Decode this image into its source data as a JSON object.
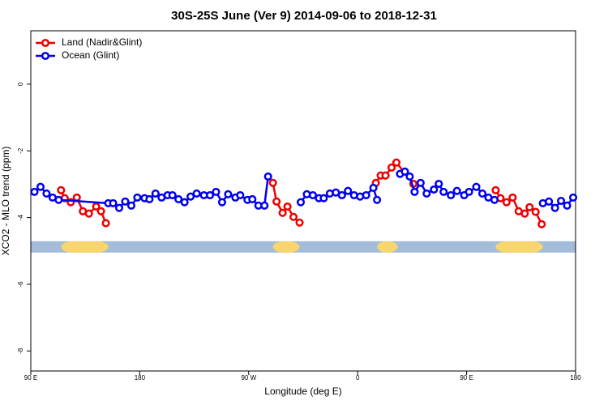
{
  "chart_data": {
    "type": "line",
    "title": "30S-25S June (Ver 9)   2014-09-06 to 2018-12-31",
    "x_label": "Longitude (deg E)",
    "y_label": "XCO2 - MLO trend (ppm)",
    "xlim": [
      90,
      540
    ],
    "xticks": [
      {
        "value": 90,
        "label": "90 E"
      },
      {
        "value": 180,
        "label": "180"
      },
      {
        "value": 270,
        "label": "90 W"
      },
      {
        "value": 360,
        "label": "0"
      },
      {
        "value": 450,
        "label": "90 E"
      },
      {
        "value": 540,
        "label": "180"
      }
    ],
    "ylim": [
      -8.6,
      1.6
    ],
    "yticks": [
      0,
      -2,
      -4,
      -6,
      -8
    ],
    "legend": "top-left",
    "mask_y": -4.88,
    "mask_color": "#a3bcd9",
    "land_color": "#f8d66d",
    "land": [
      [
        115,
        154
      ],
      [
        290,
        312
      ],
      [
        376,
        393
      ],
      [
        474,
        513
      ]
    ],
    "series": [
      {
        "name": "Land (Nadir&Glint)",
        "color": "#ee0000",
        "x": [
          115,
          118,
          123,
          128,
          133,
          138,
          144,
          148,
          152,
          null,
          290,
          293,
          298,
          302,
          307,
          312,
          null,
          375,
          379,
          383,
          388,
          392,
          406,
          null,
          474,
          478,
          483,
          488,
          493,
          498,
          502,
          507,
          512
        ],
        "values": [
          -3.18,
          -3.42,
          -3.54,
          -3.4,
          -3.81,
          -3.88,
          -3.67,
          -3.81,
          -4.17,
          null,
          -2.96,
          -3.52,
          -3.86,
          -3.67,
          -3.98,
          -4.15,
          null,
          -2.96,
          -2.74,
          -2.74,
          -2.5,
          -2.35,
          -2.99,
          null,
          -3.18,
          -3.42,
          -3.54,
          -3.4,
          -3.81,
          -3.88,
          -3.69,
          -3.83,
          -4.2
        ]
      },
      {
        "name": "Ocean (Glint)",
        "color": "#0000ee",
        "x": [
          93,
          98,
          103,
          108,
          113,
          154,
          158,
          163,
          168,
          173,
          178,
          184,
          188,
          193,
          198,
          203,
          207,
          212,
          217,
          222,
          227,
          233,
          238,
          243,
          248,
          253,
          259,
          263,
          269,
          273,
          278,
          283,
          286,
          null,
          313,
          318,
          323,
          328,
          332,
          337,
          342,
          347,
          352,
          357,
          362,
          367,
          373,
          376,
          null,
          395,
          399,
          403,
          407,
          412,
          417,
          423,
          427,
          431,
          437,
          442,
          448,
          452,
          458,
          463,
          468,
          473,
          null,
          513,
          518,
          523,
          528,
          533,
          538
        ],
        "values": [
          -3.23,
          -3.08,
          -3.28,
          -3.4,
          -3.47,
          -3.57,
          -3.57,
          -3.71,
          -3.52,
          -3.64,
          -3.4,
          -3.42,
          -3.45,
          -3.28,
          -3.4,
          -3.33,
          -3.33,
          -3.45,
          -3.54,
          -3.37,
          -3.28,
          -3.33,
          -3.33,
          -3.23,
          -3.54,
          -3.3,
          -3.4,
          -3.33,
          -3.47,
          -3.45,
          -3.64,
          -3.64,
          -2.77,
          null,
          -3.54,
          -3.3,
          -3.33,
          -3.42,
          -3.42,
          -3.28,
          -3.25,
          -3.33,
          -3.2,
          -3.33,
          -3.37,
          -3.33,
          -3.11,
          -3.47,
          null,
          -2.69,
          -2.62,
          -2.77,
          -3.23,
          -2.96,
          -3.28,
          -3.16,
          -2.99,
          -3.23,
          -3.33,
          -3.2,
          -3.33,
          -3.23,
          -3.08,
          -3.28,
          -3.4,
          -3.47,
          null,
          -3.57,
          -3.52,
          -3.71,
          -3.5,
          -3.64,
          -3.4
        ]
      }
    ]
  }
}
